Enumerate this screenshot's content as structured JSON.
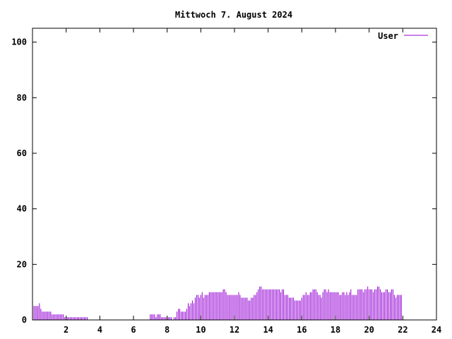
{
  "chart_data": {
    "type": "bar",
    "title": "Mittwoch 7. August 2024",
    "xlabel": "",
    "ylabel": "",
    "xlim": [
      0,
      24
    ],
    "ylim": [
      0,
      105
    ],
    "xticks": [
      2,
      4,
      6,
      8,
      10,
      12,
      14,
      16,
      18,
      20,
      22,
      24
    ],
    "yticks": [
      0,
      20,
      40,
      60,
      80,
      100
    ],
    "grid": false,
    "legend_position": "top-right",
    "series": [
      {
        "name": "User",
        "color": "#9400d3",
        "step_minutes": 5,
        "values": [
          5,
          5,
          5,
          5,
          5,
          6,
          4,
          3,
          3,
          3,
          3,
          3,
          3,
          3,
          2,
          2,
          2,
          2,
          2,
          2,
          2,
          2,
          2,
          1,
          1,
          1,
          1,
          1,
          1,
          1,
          1,
          1,
          1,
          1,
          1,
          1,
          1,
          1,
          1,
          1,
          0,
          0,
          0,
          0,
          0,
          0,
          0,
          0,
          0,
          0,
          0,
          0,
          0,
          0,
          0,
          0,
          0,
          0,
          0,
          0,
          0,
          0,
          0,
          0,
          0,
          0,
          0,
          0,
          0,
          0,
          0,
          0,
          0,
          0,
          0,
          0,
          0,
          0,
          0,
          0,
          0,
          0,
          0,
          0,
          2,
          2,
          2,
          2,
          1,
          2,
          2,
          2,
          1,
          1,
          1,
          1,
          1,
          1,
          1,
          1,
          0,
          1,
          1,
          3,
          4,
          4,
          3,
          3,
          3,
          3,
          4,
          6,
          5,
          6,
          7,
          6,
          8,
          9,
          9,
          8,
          9,
          10,
          8,
          9,
          9,
          9,
          10,
          10,
          10,
          10,
          10,
          10,
          10,
          10,
          10,
          10,
          11,
          11,
          10,
          9,
          9,
          9,
          9,
          9,
          9,
          9,
          9,
          10,
          9,
          8,
          8,
          8,
          8,
          8,
          7,
          7,
          8,
          8,
          9,
          9,
          10,
          11,
          12,
          12,
          11,
          11,
          11,
          11,
          11,
          11,
          11,
          11,
          11,
          11,
          11,
          11,
          11,
          10,
          11,
          11,
          9,
          9,
          9,
          8,
          8,
          8,
          8,
          7,
          7,
          7,
          7,
          7,
          8,
          9,
          9,
          10,
          9,
          9,
          10,
          10,
          11,
          11,
          11,
          10,
          9,
          9,
          8,
          10,
          11,
          11,
          10,
          11,
          10,
          10,
          10,
          10,
          10,
          10,
          10,
          9,
          9,
          10,
          10,
          9,
          10,
          9,
          10,
          11,
          9,
          9,
          9,
          9,
          11,
          11,
          11,
          11,
          10,
          11,
          11,
          12,
          11,
          11,
          11,
          10,
          11,
          11,
          12,
          12,
          11,
          10,
          10,
          10,
          11,
          11,
          10,
          10,
          11,
          11,
          9,
          8,
          9,
          9,
          9,
          9
        ]
      }
    ]
  }
}
